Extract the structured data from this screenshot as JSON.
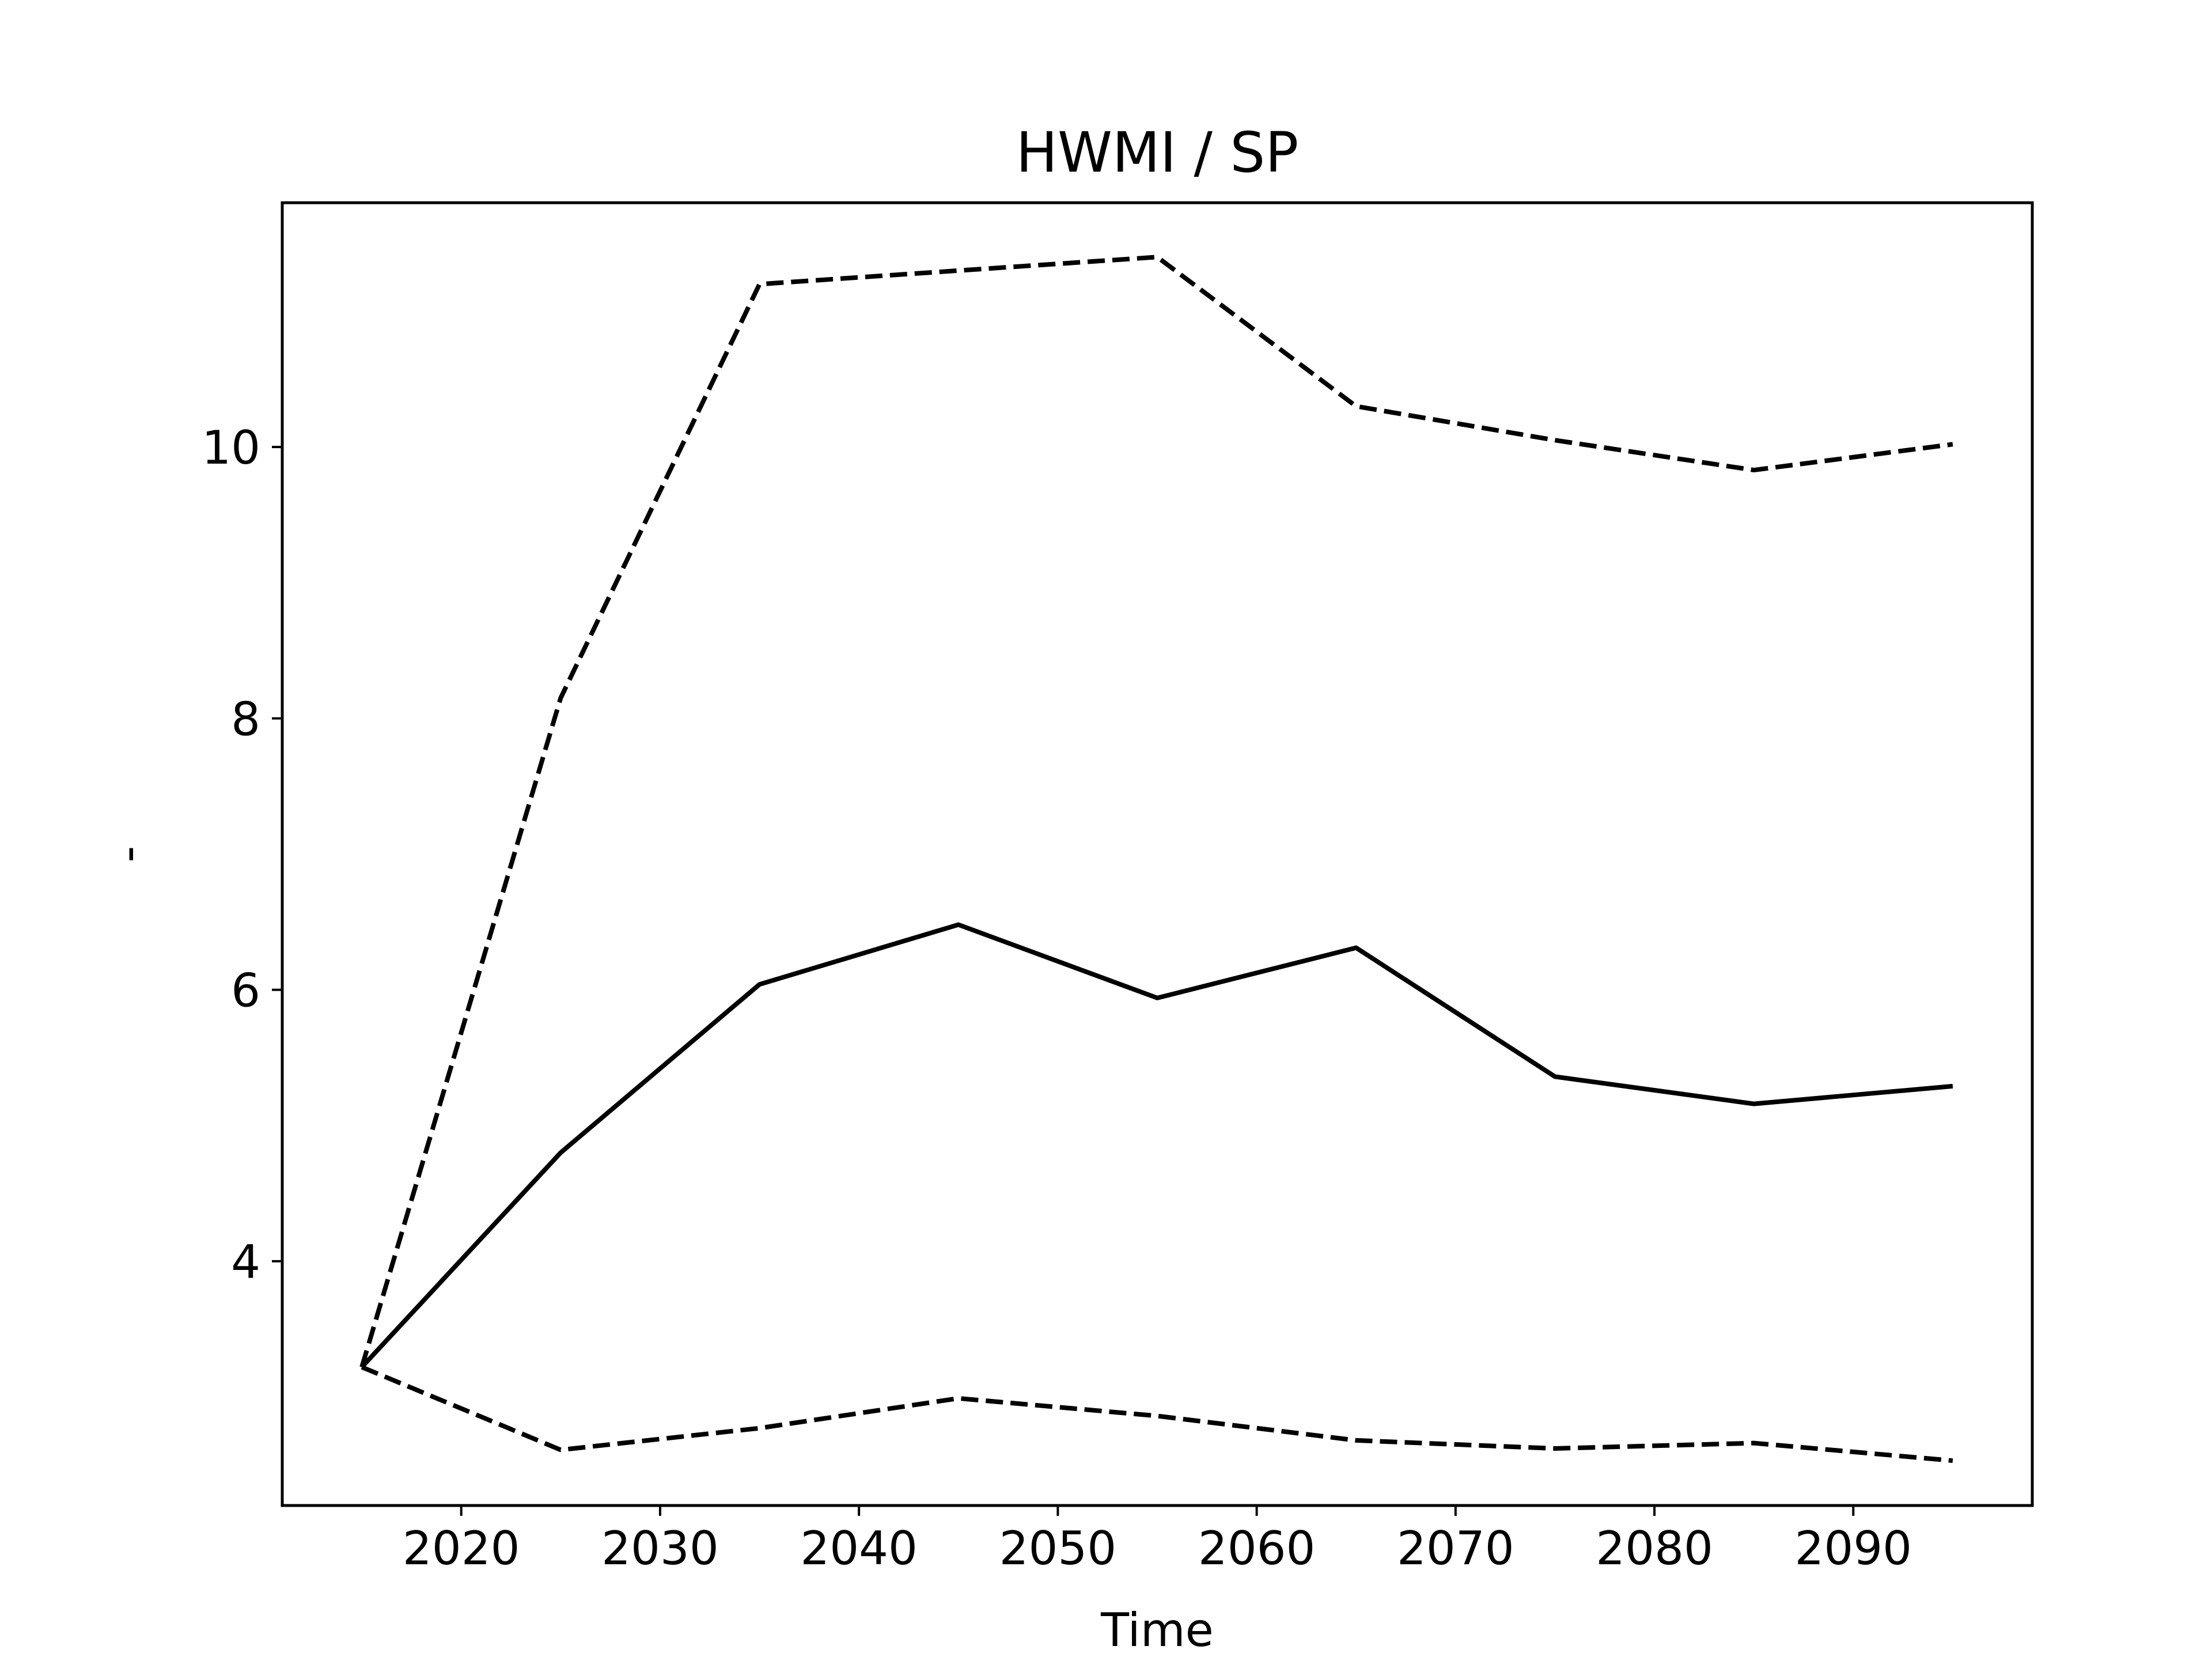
{
  "chart_data": {
    "type": "line",
    "title": "HWMI / SP",
    "xlabel": "Time",
    "ylabel": "-",
    "x": [
      2015,
      2025,
      2035,
      2045,
      2055,
      2065,
      2075,
      2085,
      2095
    ],
    "xlim": [
      2011,
      2099
    ],
    "ylim": [
      2.2,
      11.8
    ],
    "xticks": [
      2020,
      2030,
      2040,
      2050,
      2060,
      2070,
      2080,
      2090
    ],
    "yticks": [
      4,
      6,
      8,
      10
    ],
    "xtick_labels": [
      "2020",
      "2030",
      "2040",
      "2050",
      "2060",
      "2070",
      "2080",
      "2090"
    ],
    "ytick_labels": [
      "4",
      "6",
      "8",
      "10"
    ],
    "grid": false,
    "line_color": "#000000",
    "series": [
      {
        "style": "solid",
        "values": [
          3.22,
          4.8,
          6.04,
          6.48,
          5.94,
          6.31,
          5.36,
          5.16,
          5.29
        ]
      },
      {
        "style": "dashed",
        "values": [
          3.22,
          8.15,
          11.2,
          11.3,
          11.4,
          10.3,
          10.05,
          9.83,
          10.02
        ]
      },
      {
        "style": "dashed",
        "values": [
          3.22,
          2.61,
          2.77,
          2.99,
          2.86,
          2.68,
          2.62,
          2.66,
          2.53
        ]
      }
    ]
  }
}
